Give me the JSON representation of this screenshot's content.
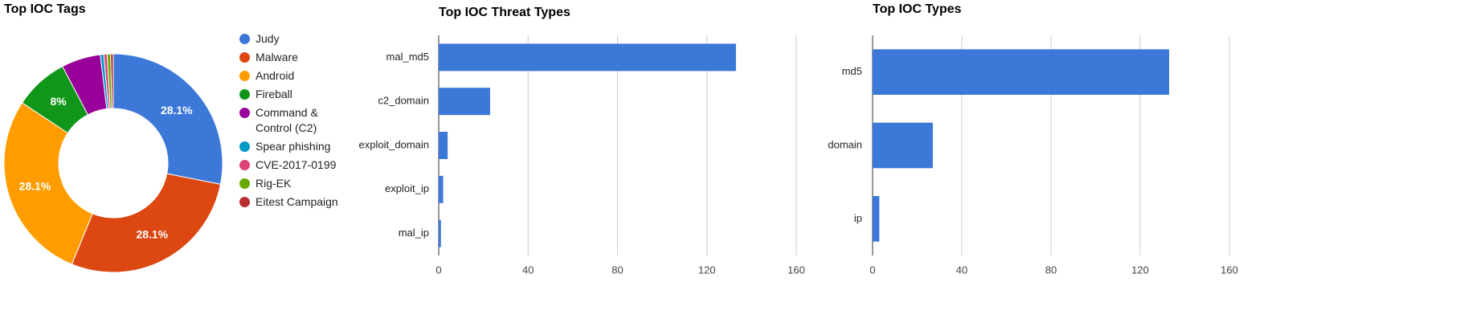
{
  "chart_data": [
    {
      "type": "pie",
      "title": "Top IOC Tags",
      "categories": [
        "Judy",
        "Malware",
        "Android",
        "Fireball",
        "Command & Control (C2)",
        "Spear phishing",
        "CVE-2017-0199",
        "Rig-EK",
        "Eitest Campaign"
      ],
      "values": [
        28.1,
        28.1,
        28.1,
        8,
        5.8,
        0.5,
        0.5,
        0.5,
        0.4
      ],
      "value_labels": [
        "28.1%",
        "28.1%",
        "28.1%",
        "8%",
        null,
        null,
        null,
        null,
        null
      ],
      "colors": [
        "#3c78d8",
        "#dc4712",
        "#ff9d00",
        "#109618",
        "#990099",
        "#0099c6",
        "#dd4477",
        "#66aa00",
        "#b82e2e"
      ],
      "donut": true,
      "legend": "right"
    },
    {
      "type": "bar",
      "title": "Top IOC Threat Types",
      "categories": [
        "mal_md5",
        "c2_domain",
        "exploit_domain",
        "exploit_ip",
        "mal_ip"
      ],
      "values": [
        133,
        23,
        4,
        2,
        1
      ],
      "color": "#3c78d8",
      "xlim": [
        0,
        160
      ],
      "xticks": [
        0,
        40,
        80,
        120,
        160
      ],
      "grid": true
    },
    {
      "type": "bar",
      "title": "Top IOC Types",
      "categories": [
        "md5",
        "domain",
        "ip"
      ],
      "values": [
        133,
        27,
        3
      ],
      "color": "#3c78d8",
      "xlim": [
        0,
        160
      ],
      "xticks": [
        0,
        40,
        80,
        120,
        160
      ],
      "grid": true
    }
  ]
}
